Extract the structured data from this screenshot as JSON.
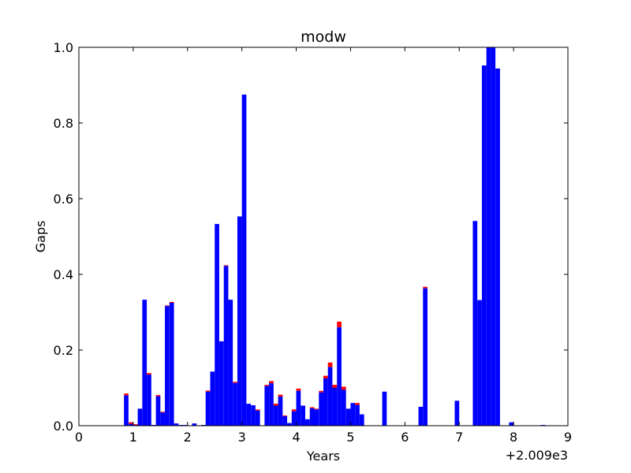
{
  "chart_data": {
    "type": "bar",
    "title": "modw",
    "xlabel": "Years",
    "ylabel": "Gaps",
    "xlim": [
      0,
      9
    ],
    "ylim": [
      0,
      1.0
    ],
    "x_offset_label": "+2.009e3",
    "xticks": [
      "0",
      "1",
      "2",
      "3",
      "4",
      "5",
      "6",
      "7",
      "8",
      "9"
    ],
    "yticks": [
      "0.0",
      "0.2",
      "0.4",
      "0.6",
      "0.8",
      "1.0"
    ],
    "grid": false,
    "bar_width": 0.083,
    "x": [
      0.83,
      0.917,
      1.0,
      1.083,
      1.167,
      1.25,
      1.333,
      1.417,
      1.5,
      1.583,
      1.667,
      1.75,
      1.833,
      1.917,
      2.0,
      2.083,
      2.167,
      2.25,
      2.333,
      2.417,
      2.5,
      2.583,
      2.667,
      2.75,
      2.833,
      2.917,
      3.0,
      3.083,
      3.167,
      3.25,
      3.333,
      3.417,
      3.5,
      3.583,
      3.667,
      3.75,
      3.833,
      3.917,
      4.0,
      4.083,
      4.167,
      4.25,
      4.333,
      4.417,
      4.5,
      4.583,
      4.667,
      4.75,
      4.833,
      4.917,
      5.0,
      5.083,
      5.167,
      5.583,
      6.25,
      6.333,
      6.917,
      7.25,
      7.333,
      7.417,
      7.5,
      7.583,
      7.667,
      7.917,
      8.5
    ],
    "series": [
      {
        "color": "#0000ff",
        "values": [
          0.08,
          0.005,
          0.002,
          0.045,
          0.333,
          0.135,
          0.002,
          0.078,
          0.035,
          0.316,
          0.325,
          0.006,
          0.002,
          0.002,
          0.0,
          0.006,
          0.0,
          0.002,
          0.09,
          0.143,
          0.533,
          0.223,
          0.422,
          0.333,
          0.113,
          0.553,
          0.875,
          0.058,
          0.054,
          0.04,
          0.0,
          0.105,
          0.112,
          0.053,
          0.077,
          0.025,
          0.007,
          0.038,
          0.092,
          0.053,
          0.017,
          0.046,
          0.043,
          0.088,
          0.125,
          0.155,
          0.1,
          0.26,
          0.095,
          0.045,
          0.06,
          0.055,
          0.03,
          0.09,
          0.05,
          0.363,
          0.066,
          0.541,
          0.332,
          0.952,
          1.0,
          1.0,
          0.944,
          0.009,
          0.002
        ]
      },
      {
        "color": "#ff0000",
        "values": [
          0.005,
          0.004,
          0.002,
          0.0,
          0.0,
          0.004,
          0.0,
          0.003,
          0.002,
          0.002,
          0.002,
          0.0,
          0.0,
          0.0,
          0.0,
          0.0,
          0.0,
          0.0,
          0.003,
          0.0,
          0.0,
          0.0,
          0.002,
          0.0,
          0.003,
          0.0,
          0.0,
          0.0,
          0.0,
          0.003,
          0.0,
          0.003,
          0.006,
          0.005,
          0.005,
          0.002,
          0.0,
          0.005,
          0.006,
          0.0,
          0.0,
          0.003,
          0.002,
          0.004,
          0.007,
          0.012,
          0.008,
          0.015,
          0.008,
          0.0,
          0.0,
          0.005,
          0.0,
          0.0,
          0.0,
          0.004,
          0.0,
          0.0,
          0.0,
          0.0,
          0.0,
          0.0,
          0.0,
          0.0,
          0.0
        ]
      }
    ]
  }
}
